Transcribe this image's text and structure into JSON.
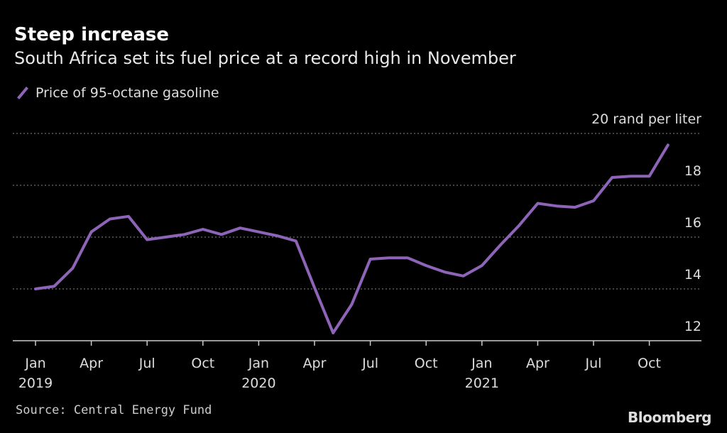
{
  "chart_data": {
    "type": "line",
    "title": "Steep increase",
    "subtitle": "South Africa set its fuel price at a record high in November",
    "ylabel": "20 rand per liter",
    "source": "Source: Central Energy Fund",
    "brand": "Bloomberg",
    "ylim": [
      12,
      20
    ],
    "yticks": [
      12,
      14,
      16,
      18,
      20
    ],
    "grid": true,
    "legend_position": "top-left",
    "line_color": "#8e64b8",
    "xticks": [
      {
        "month": "2019-01",
        "label": "Jan",
        "year": "2019"
      },
      {
        "month": "2019-04",
        "label": "Apr"
      },
      {
        "month": "2019-07",
        "label": "Jul"
      },
      {
        "month": "2019-10",
        "label": "Oct"
      },
      {
        "month": "2020-01",
        "label": "Jan",
        "year": "2020"
      },
      {
        "month": "2020-04",
        "label": "Apr"
      },
      {
        "month": "2020-07",
        "label": "Jul"
      },
      {
        "month": "2020-10",
        "label": "Oct"
      },
      {
        "month": "2021-01",
        "label": "Jan",
        "year": "2021"
      },
      {
        "month": "2021-04",
        "label": "Apr"
      },
      {
        "month": "2021-07",
        "label": "Jul"
      },
      {
        "month": "2021-10",
        "label": "Oct"
      }
    ],
    "series": [
      {
        "name": "Price of 95-octane gasoline",
        "x": [
          "2019-01",
          "2019-02",
          "2019-03",
          "2019-04",
          "2019-05",
          "2019-06",
          "2019-07",
          "2019-08",
          "2019-09",
          "2019-10",
          "2019-11",
          "2019-12",
          "2020-01",
          "2020-02",
          "2020-03",
          "2020-04",
          "2020-05",
          "2020-06",
          "2020-07",
          "2020-08",
          "2020-09",
          "2020-10",
          "2020-11",
          "2020-12",
          "2021-01",
          "2021-02",
          "2021-03",
          "2021-04",
          "2021-05",
          "2021-06",
          "2021-07",
          "2021-08",
          "2021-09",
          "2021-10",
          "2021-11"
        ],
        "values": [
          14.0,
          14.1,
          14.8,
          16.2,
          16.7,
          16.8,
          15.9,
          16.0,
          16.1,
          16.3,
          16.1,
          16.35,
          16.2,
          16.05,
          15.85,
          14.05,
          12.3,
          13.4,
          15.15,
          15.2,
          15.2,
          14.9,
          14.65,
          14.5,
          14.9,
          15.7,
          16.45,
          17.3,
          17.2,
          17.15,
          17.4,
          18.3,
          18.35,
          18.35,
          19.55
        ]
      }
    ]
  }
}
